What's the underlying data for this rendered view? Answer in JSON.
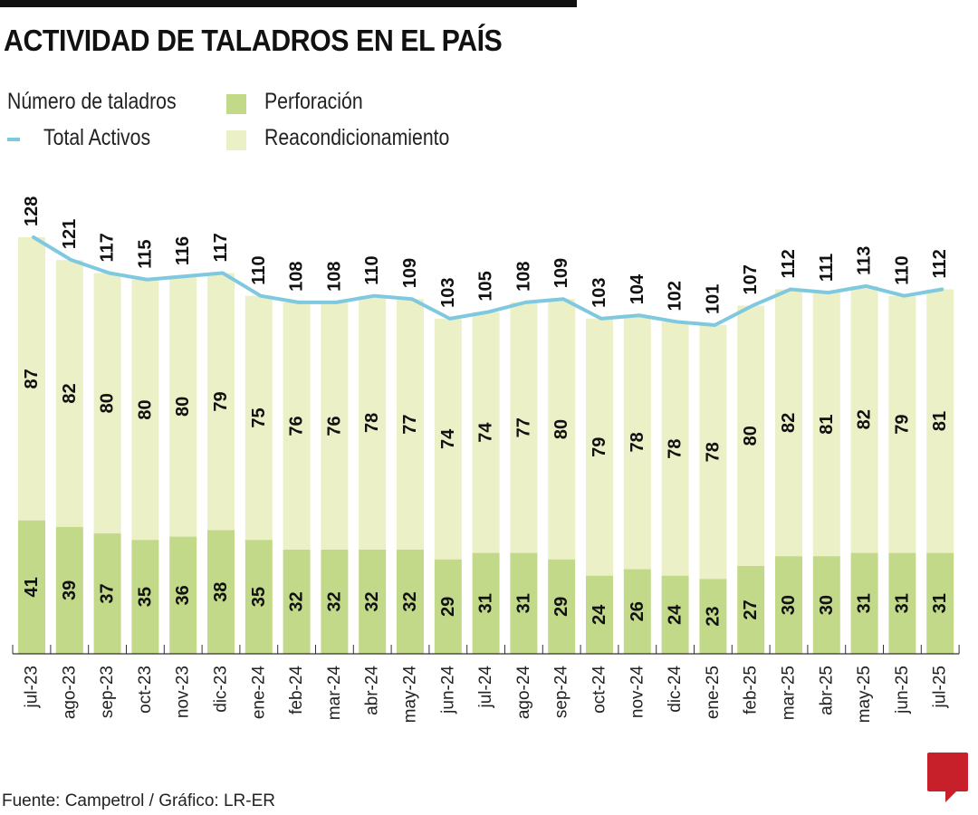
{
  "title": "ACTIVIDAD DE TALADROS EN EL PAÍS",
  "source": "Fuente: Campetrol / Gráfico: LR-ER",
  "logo": "LR",
  "legend": {
    "unit": "Número de taladros",
    "total": "Total Activos",
    "perf": "Perforación",
    "reac": "Reacondicionamiento"
  },
  "colors": {
    "perforacion": "#c3d98a",
    "reacondicionamiento": "#ecf0c6",
    "total": "#7ec8e0",
    "logo": "#c8202a"
  },
  "chart_data": {
    "type": "bar",
    "stacked": true,
    "categories": [
      "jul-23",
      "ago-23",
      "sep-23",
      "oct-23",
      "nov-23",
      "dic-23",
      "ene-24",
      "feb-24",
      "mar-24",
      "abr-24",
      "may-24",
      "jun-24",
      "jul-24",
      "ago-24",
      "sep-24",
      "oct-24",
      "nov-24",
      "dic-24",
      "ene-25",
      "feb-25",
      "mar-25",
      "abr-25",
      "may-25",
      "jun-25",
      "jul-25"
    ],
    "series": [
      {
        "name": "Perforación",
        "values": [
          41,
          39,
          37,
          35,
          36,
          38,
          35,
          32,
          32,
          32,
          32,
          29,
          31,
          31,
          29,
          24,
          26,
          24,
          23,
          27,
          30,
          30,
          31,
          31,
          31
        ]
      },
      {
        "name": "Reacondicionamiento",
        "values": [
          87,
          82,
          80,
          80,
          80,
          79,
          75,
          76,
          76,
          78,
          77,
          74,
          74,
          77,
          80,
          79,
          78,
          78,
          78,
          80,
          82,
          81,
          82,
          79,
          81
        ]
      },
      {
        "name": "Total Activos",
        "type": "line",
        "values": [
          128,
          121,
          117,
          115,
          116,
          117,
          110,
          108,
          108,
          110,
          109,
          103,
          105,
          108,
          109,
          103,
          104,
          102,
          101,
          107,
          112,
          111,
          113,
          110,
          112
        ]
      }
    ],
    "ylim": [
      0,
      128
    ],
    "grid": false,
    "legend_position": "top-left"
  }
}
